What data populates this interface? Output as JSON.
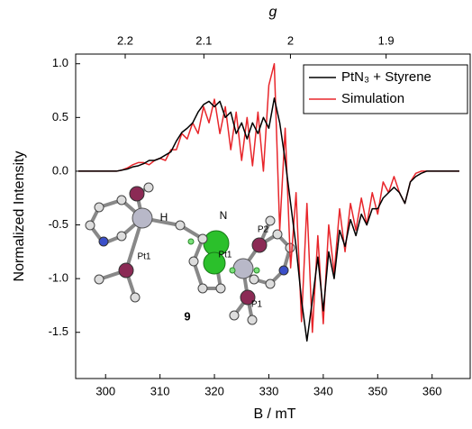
{
  "chart_data": {
    "type": "line",
    "x_label": "B / mT",
    "y_label": "Normalized Intensity",
    "x2_label": "g",
    "xlim": [
      294.5,
      367
    ],
    "xticks": [
      300,
      310,
      320,
      330,
      340,
      350,
      360
    ],
    "ylim": [
      -1.93,
      1.09
    ],
    "yticks": [
      {
        "value": -1.5,
        "label": "-1.5"
      },
      {
        "value": -1,
        "label": "-1.0"
      },
      {
        "value": -0.5,
        "label": "-0.5"
      },
      {
        "value": 0,
        "label": "0.0"
      },
      {
        "value": 0.5,
        "label": "0.5"
      },
      {
        "value": 1,
        "label": "1.0"
      }
    ],
    "x2lim": [
      2.268,
      1.82
    ],
    "x2scale": "reciprocal",
    "x2ticks": [
      2.2,
      2.1,
      2,
      1.9
    ],
    "legend": "upper right",
    "x": [
      295,
      296,
      297,
      298,
      299,
      300,
      301,
      302,
      303,
      304,
      305,
      306,
      307,
      308,
      309,
      310,
      311,
      312,
      313,
      314,
      315,
      316,
      317,
      318,
      319,
      320,
      321,
      322,
      323,
      324,
      325,
      326,
      327,
      328,
      329,
      330,
      331,
      332,
      333,
      334,
      335,
      336,
      337,
      338,
      339,
      340,
      341,
      342,
      343,
      344,
      345,
      346,
      347,
      348,
      349,
      350,
      351,
      352,
      353,
      354,
      355,
      356,
      357,
      358,
      359,
      360,
      361,
      362,
      363,
      364,
      365
    ],
    "series": [
      {
        "name": "PtN₃ + Styrene",
        "color": "#000000",
        "values": [
          0,
          0,
          0,
          0,
          0,
          0,
          0,
          0,
          0.01,
          0.02,
          0.04,
          0.05,
          0.07,
          0.1,
          0.1,
          0.12,
          0.15,
          0.18,
          0.28,
          0.36,
          0.4,
          0.45,
          0.55,
          0.62,
          0.65,
          0.6,
          0.65,
          0.5,
          0.55,
          0.35,
          0.45,
          0.3,
          0.45,
          0.35,
          0.5,
          0.4,
          0.68,
          0.45,
          0.1,
          -0.3,
          -0.7,
          -1.2,
          -1.58,
          -1.2,
          -0.8,
          -1.3,
          -0.75,
          -1.0,
          -0.55,
          -0.7,
          -0.45,
          -0.6,
          -0.4,
          -0.5,
          -0.35,
          -0.35,
          -0.25,
          -0.2,
          -0.15,
          -0.2,
          -0.3,
          -0.1,
          -0.05,
          -0.02,
          0,
          0,
          0,
          0,
          0,
          0,
          0
        ]
      },
      {
        "name": "Simulation",
        "color": "#e8262b",
        "values": [
          0,
          0,
          0,
          0,
          0,
          0,
          0,
          0,
          0.01,
          0.03,
          0.06,
          0.08,
          0.08,
          0.06,
          0.1,
          0.12,
          0.1,
          0.2,
          0.2,
          0.35,
          0.3,
          0.45,
          0.35,
          0.6,
          0.45,
          0.67,
          0.35,
          0.6,
          0.2,
          0.55,
          0.1,
          0.5,
          0.05,
          0.55,
          0,
          0.8,
          1.0,
          -0.55,
          0.4,
          -0.9,
          -0.2,
          -1.4,
          -0.3,
          -1.5,
          -0.6,
          -1.42,
          -0.5,
          -0.95,
          -0.35,
          -0.75,
          -0.3,
          -0.55,
          -0.25,
          -0.5,
          -0.2,
          -0.4,
          -0.1,
          -0.2,
          -0.05,
          -0.2,
          -0.3,
          -0.1,
          -0.02,
          0,
          0,
          0,
          0,
          0,
          0,
          0,
          0
        ]
      }
    ],
    "annotations": [
      "H",
      "N",
      "Pt1",
      "P2",
      "Pt1",
      "P1",
      "9"
    ]
  }
}
